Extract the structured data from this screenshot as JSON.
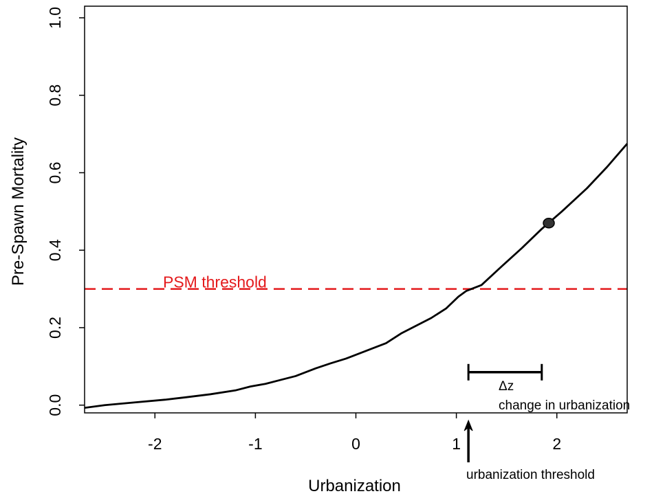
{
  "chart_data": {
    "type": "line",
    "title": "",
    "xlabel": "Urbanization",
    "ylabel": "Pre-Spawn Mortality",
    "xlim": [
      -2.7,
      2.7
    ],
    "ylim": [
      -0.02,
      1.03
    ],
    "x_ticks": [
      -2,
      -1,
      0,
      1,
      2
    ],
    "x_tick_labels": [
      "-2",
      "-1",
      "0",
      "1",
      "2"
    ],
    "y_ticks": [
      0.0,
      0.2,
      0.4,
      0.6,
      0.8,
      1.0
    ],
    "y_tick_labels": [
      "0.0",
      "0.2",
      "0.4",
      "0.6",
      "0.8",
      "1.0"
    ],
    "grid": false,
    "series": [
      {
        "color": "#000000",
        "x": [
          -2.7,
          -2.5,
          -2.2,
          -1.9,
          -1.7,
          -1.45,
          -1.2,
          -1.05,
          -0.9,
          -0.75,
          -0.6,
          -0.4,
          -0.25,
          -0.1,
          0.1,
          0.3,
          0.45,
          0.6,
          0.75,
          0.9,
          1.02,
          1.1,
          1.25,
          1.45,
          1.65,
          1.85,
          2.05,
          2.3,
          2.5,
          2.7
        ],
        "y": [
          -0.007,
          0.0,
          0.007,
          0.014,
          0.02,
          0.028,
          0.038,
          0.048,
          0.055,
          0.065,
          0.075,
          0.095,
          0.108,
          0.12,
          0.14,
          0.16,
          0.185,
          0.205,
          0.225,
          0.25,
          0.28,
          0.295,
          0.31,
          0.358,
          0.405,
          0.455,
          0.5,
          0.56,
          0.615,
          0.675
        ]
      }
    ],
    "reference_line": {
      "y": 0.3,
      "color": "#e41a1c",
      "style": "dashed",
      "label": "PSM threshold"
    },
    "marker_point": {
      "x": 1.92,
      "y": 0.47,
      "color": "#333333"
    },
    "delta_bar": {
      "x_start": 1.12,
      "x_end": 1.85,
      "y": 0.085,
      "label": "Δz",
      "sublabel": "change in urbanization"
    },
    "threshold_arrow": {
      "x": 1.12,
      "label": "urbanization threshold"
    }
  }
}
